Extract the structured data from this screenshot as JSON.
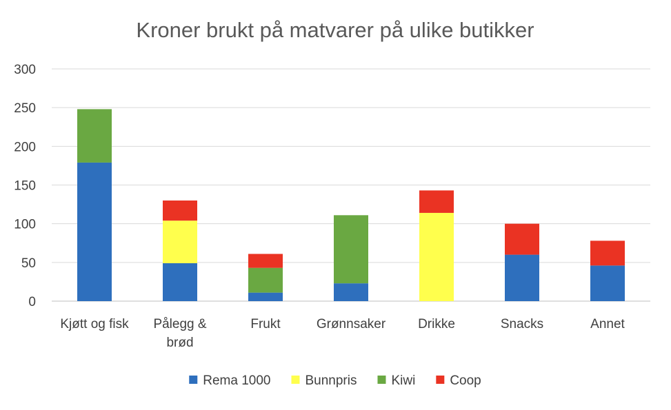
{
  "chart_data": {
    "type": "bar",
    "stacked": true,
    "title": "Kroner brukt på matvarer på ulike butikker",
    "xlabel": "",
    "ylabel": "",
    "ylim": [
      0,
      300
    ],
    "yticks": [
      0,
      50,
      100,
      150,
      200,
      250,
      300
    ],
    "grid": true,
    "legend_position": "bottom",
    "categories": [
      [
        "Kjøtt og fisk"
      ],
      [
        "Pålegg &",
        "brød"
      ],
      [
        "Frukt"
      ],
      [
        "Grønnsaker"
      ],
      [
        "Drikke"
      ],
      [
        "Snacks"
      ],
      [
        "Annet"
      ]
    ],
    "series": [
      {
        "name": "Rema 1000",
        "color": "#2e6fbd",
        "values": [
          179,
          49,
          11,
          23,
          0,
          60,
          46
        ]
      },
      {
        "name": "Bunnpris",
        "color": "#ffff4d",
        "values": [
          0,
          55,
          0,
          0,
          114,
          0,
          0
        ]
      },
      {
        "name": "Kiwi",
        "color": "#6aa842",
        "values": [
          69,
          0,
          32,
          88,
          0,
          0,
          0
        ]
      },
      {
        "name": "Coop",
        "color": "#ea3323",
        "values": [
          0,
          26,
          18,
          0,
          29,
          40,
          32
        ]
      }
    ]
  }
}
